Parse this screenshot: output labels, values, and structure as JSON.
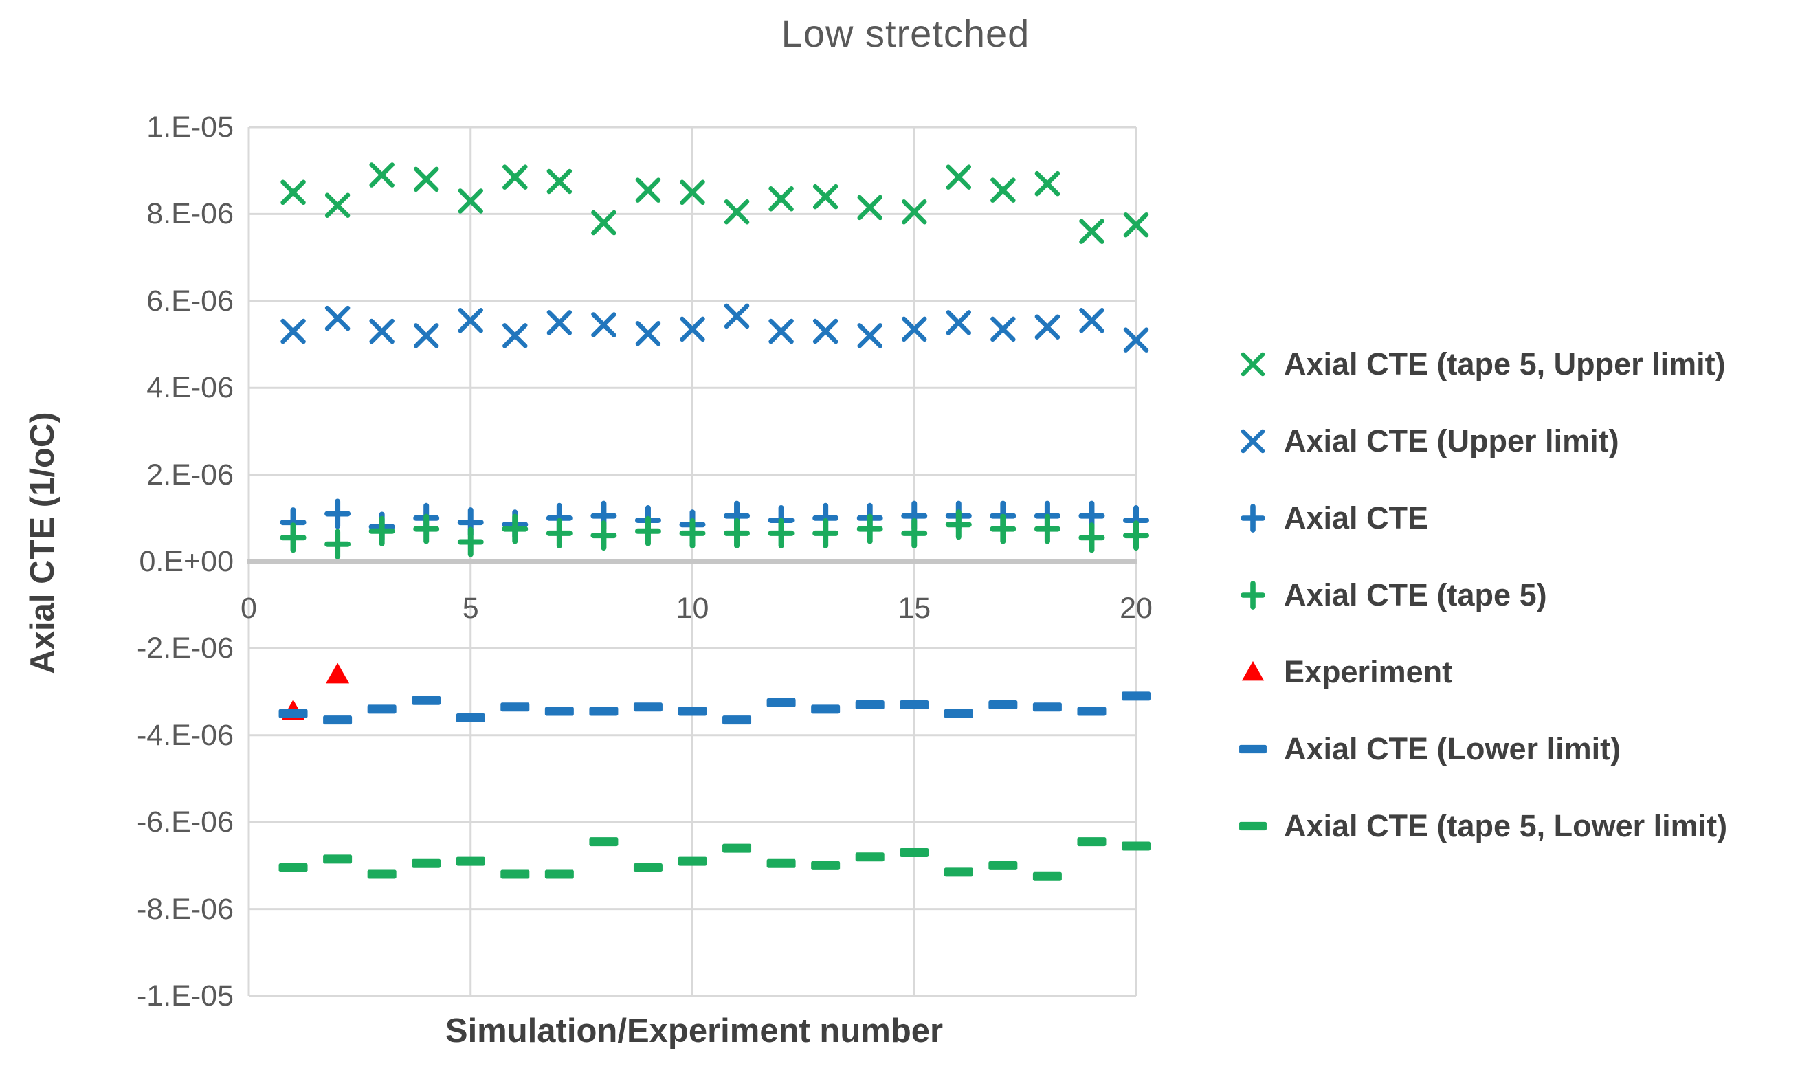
{
  "chart_data": {
    "type": "scatter",
    "title": "Low stretched",
    "xlabel": "Simulation/Experiment number",
    "ylabel": "Axial CTE (1/oC)",
    "xlim": [
      0,
      20
    ],
    "ylim": [
      -1e-05,
      1e-05
    ],
    "grid": true,
    "legend_position": "right",
    "x_ticks": [
      0,
      5,
      10,
      15,
      20
    ],
    "x_tick_labels": [
      "0",
      "5",
      "10",
      "15",
      "20"
    ],
    "y_ticks": [
      1e-05,
      8e-06,
      6e-06,
      4e-06,
      2e-06,
      0,
      -2e-06,
      -4e-06,
      -6e-06,
      -8e-06,
      -1e-05
    ],
    "y_tick_labels": [
      "1.E-05",
      "8.E-06",
      "6.E-06",
      "4.E-06",
      "2.E-06",
      "0.E+00",
      "-2.E-06",
      "-4.E-06",
      "-6.E-06",
      "-8.E-06",
      "-1.E-05"
    ],
    "colors": {
      "green": "#1BAB5C",
      "blue": "#2176BD",
      "red": "#FF0000",
      "gridline": "#D9D9D9",
      "axis_line": "#C6C6C6",
      "tick_text": "#595959",
      "label_text": "#404040"
    },
    "series": [
      {
        "name": "Axial CTE (tape 5, Upper limit)",
        "marker": "x",
        "color": "#1BAB5C",
        "x": [
          1,
          2,
          3,
          4,
          5,
          6,
          7,
          8,
          9,
          10,
          11,
          12,
          13,
          14,
          15,
          16,
          17,
          18,
          19,
          20
        ],
        "values": [
          8.5e-06,
          8.2e-06,
          8.9e-06,
          8.8e-06,
          8.3e-06,
          8.85e-06,
          8.75e-06,
          7.8e-06,
          8.55e-06,
          8.5e-06,
          8.05e-06,
          8.35e-06,
          8.4e-06,
          8.15e-06,
          8.05e-06,
          8.85e-06,
          8.55e-06,
          8.7e-06,
          7.6e-06,
          7.75e-06
        ]
      },
      {
        "name": "Axial CTE (Upper limit)",
        "marker": "x",
        "color": "#2176BD",
        "x": [
          1,
          2,
          3,
          4,
          5,
          6,
          7,
          8,
          9,
          10,
          11,
          12,
          13,
          14,
          15,
          16,
          17,
          18,
          19,
          20
        ],
        "values": [
          5.3e-06,
          5.6e-06,
          5.3e-06,
          5.2e-06,
          5.55e-06,
          5.2e-06,
          5.5e-06,
          5.45e-06,
          5.25e-06,
          5.35e-06,
          5.65e-06,
          5.3e-06,
          5.3e-06,
          5.2e-06,
          5.35e-06,
          5.5e-06,
          5.35e-06,
          5.4e-06,
          5.55e-06,
          5.1e-06
        ]
      },
      {
        "name": "Axial CTE",
        "marker": "plus",
        "color": "#2176BD",
        "x": [
          1,
          2,
          3,
          4,
          5,
          6,
          7,
          8,
          9,
          10,
          11,
          12,
          13,
          14,
          15,
          16,
          17,
          18,
          19,
          20
        ],
        "values": [
          9e-07,
          1.1e-06,
          8e-07,
          1e-06,
          9e-07,
          8.5e-07,
          1e-06,
          1.05e-06,
          9.5e-07,
          8.5e-07,
          1.05e-06,
          9.5e-07,
          1e-06,
          1e-06,
          1.05e-06,
          1.05e-06,
          1.05e-06,
          1.05e-06,
          1.05e-06,
          9.5e-07
        ]
      },
      {
        "name": "Axial CTE (tape 5)",
        "marker": "plus",
        "color": "#1BAB5C",
        "x": [
          1,
          2,
          3,
          4,
          5,
          6,
          7,
          8,
          9,
          10,
          11,
          12,
          13,
          14,
          15,
          16,
          17,
          18,
          19,
          20
        ],
        "values": [
          5.5e-07,
          4e-07,
          7e-07,
          7.5e-07,
          4.5e-07,
          7.5e-07,
          6.5e-07,
          6e-07,
          7e-07,
          6.5e-07,
          6.5e-07,
          6.5e-07,
          6.5e-07,
          7.5e-07,
          6.5e-07,
          8.5e-07,
          7.5e-07,
          7.5e-07,
          5.5e-07,
          6e-07
        ]
      },
      {
        "name": "Experiment",
        "marker": "triangle",
        "color": "#FF0000",
        "x": [
          1,
          2
        ],
        "values": [
          -3.45e-06,
          -2.6e-06
        ]
      },
      {
        "name": "Axial CTE (Lower limit)",
        "marker": "dash",
        "color": "#2176BD",
        "x": [
          1,
          2,
          3,
          4,
          5,
          6,
          7,
          8,
          9,
          10,
          11,
          12,
          13,
          14,
          15,
          16,
          17,
          18,
          19,
          20
        ],
        "values": [
          -3.5e-06,
          -3.65e-06,
          -3.4e-06,
          -3.2e-06,
          -3.6e-06,
          -3.35e-06,
          -3.45e-06,
          -3.45e-06,
          -3.35e-06,
          -3.45e-06,
          -3.65e-06,
          -3.25e-06,
          -3.4e-06,
          -3.3e-06,
          -3.3e-06,
          -3.5e-06,
          -3.3e-06,
          -3.35e-06,
          -3.45e-06,
          -3.1e-06
        ]
      },
      {
        "name": "Axial CTE (tape 5, Lower limit)",
        "marker": "dash",
        "color": "#1BAB5C",
        "x": [
          1,
          2,
          3,
          4,
          5,
          6,
          7,
          8,
          9,
          10,
          11,
          12,
          13,
          14,
          15,
          16,
          17,
          18,
          19,
          20
        ],
        "values": [
          -7.05e-06,
          -6.85e-06,
          -7.2e-06,
          -6.95e-06,
          -6.9e-06,
          -7.2e-06,
          -7.2e-06,
          -6.45e-06,
          -7.05e-06,
          -6.9e-06,
          -6.6e-06,
          -6.95e-06,
          -7e-06,
          -6.8e-06,
          -6.7e-06,
          -7.15e-06,
          -7e-06,
          -7.25e-06,
          -6.45e-06,
          -6.55e-06
        ]
      }
    ]
  }
}
